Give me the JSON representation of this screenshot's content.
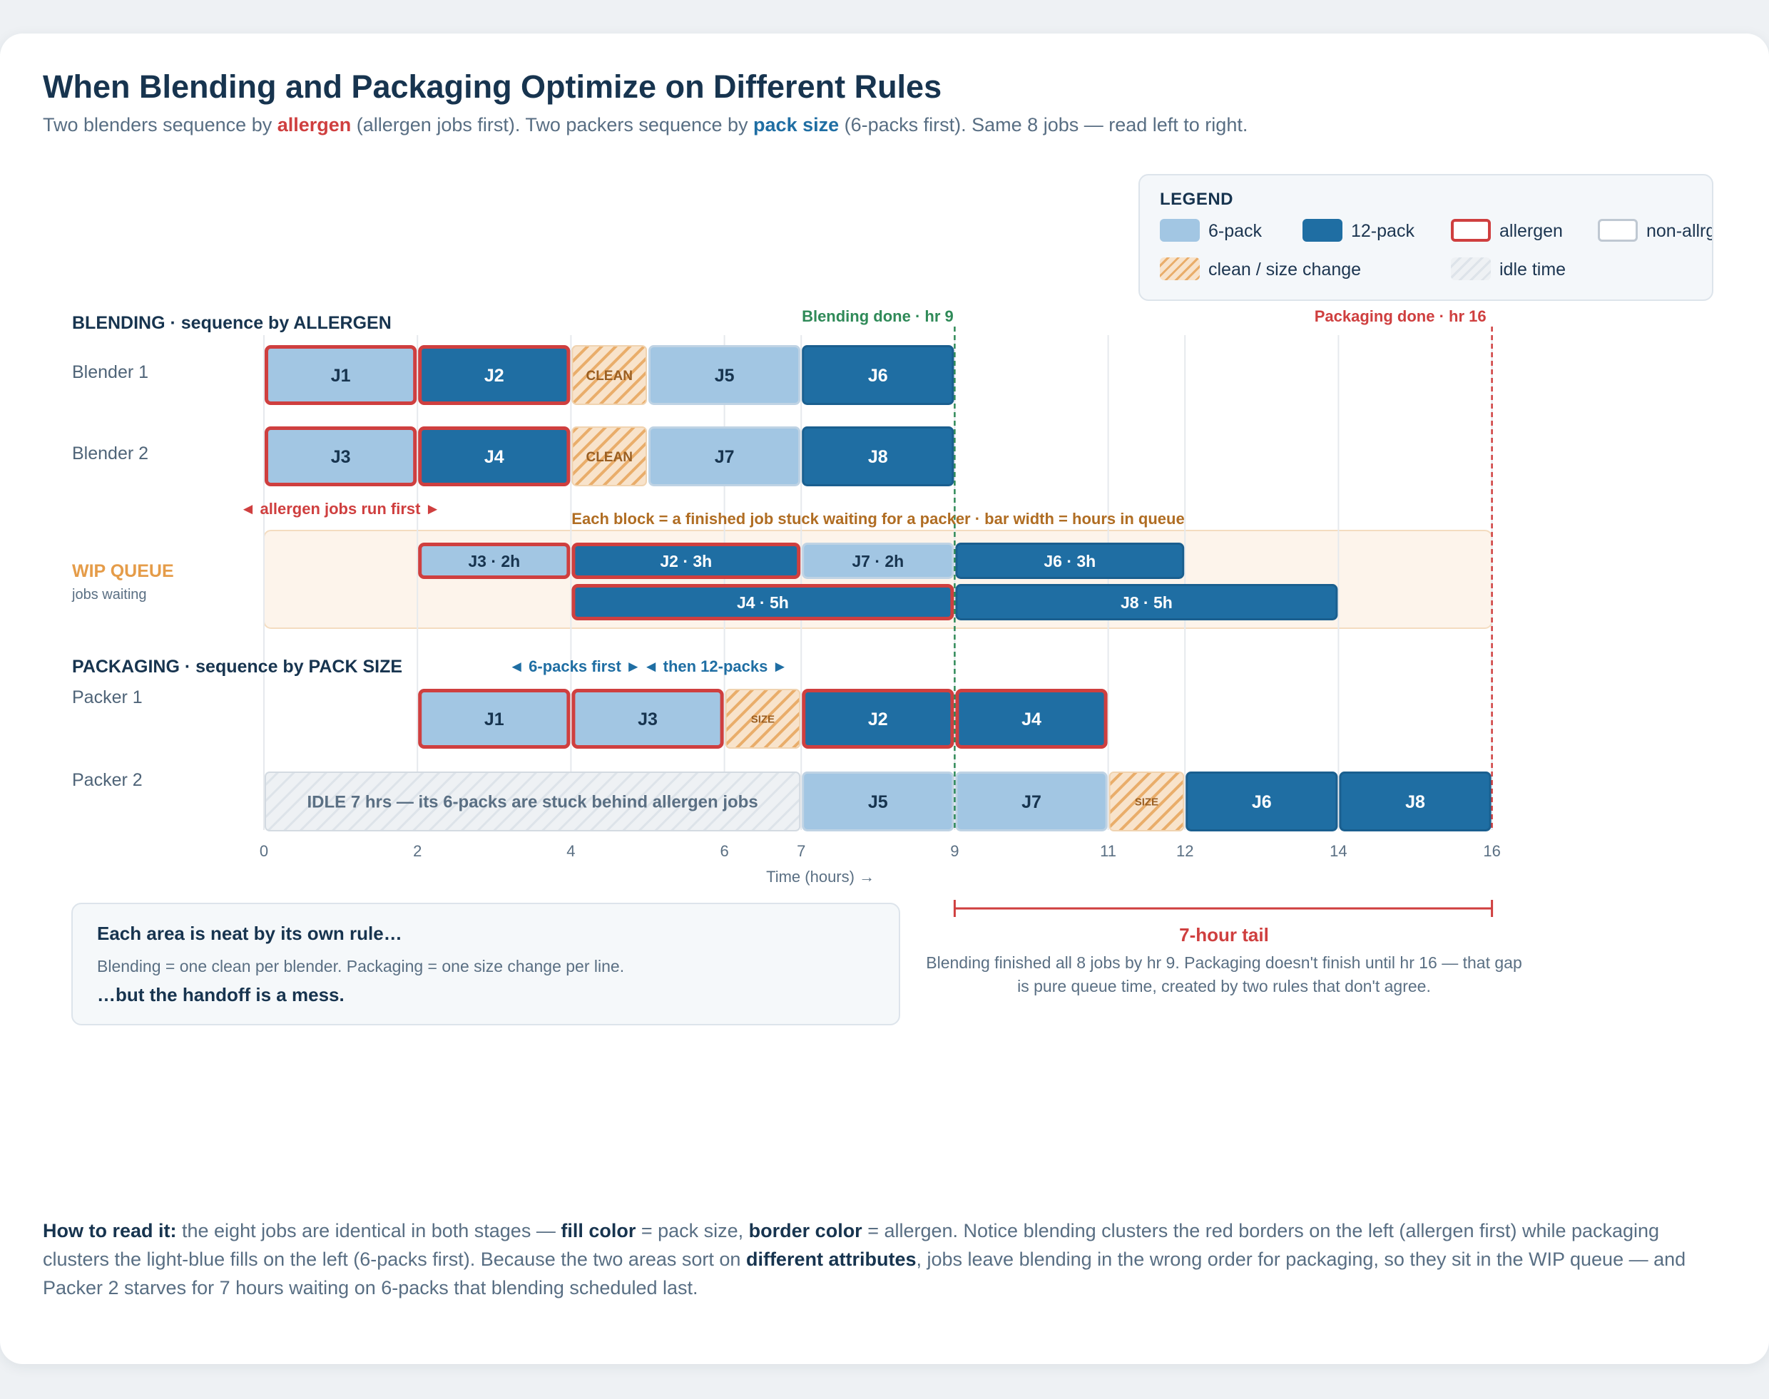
{
  "title": "When Blending and Packaging Optimize on Different Rules",
  "subtitle": {
    "p1": "Two blenders sequence by ",
    "r1": "allergen",
    "p2": " (allergen jobs first). Two packers sequence by ",
    "r2": "pack size",
    "p3": " (6-packs first). Same 8 jobs — read left to right."
  },
  "legend": {
    "title": "LEGEND",
    "items": [
      "6-pack",
      "12-pack",
      "allergen",
      "non-allrg",
      "clean / size change",
      "idle time"
    ]
  },
  "colors": {
    "six_pack": "#a2c6e3",
    "twelve_pack": "#1f6ea3",
    "allergen_border": "#cf3f3f",
    "non_allergen_border": "#bfc8d2",
    "changeover": "#e9ad6a",
    "idle": "#dde3e9",
    "blend_done": "#2f8a58",
    "pack_done": "#cf3f3f",
    "wip": "#e59c49"
  },
  "chart_data": {
    "type": "gantt",
    "xlabel": "Time (hours) →",
    "xlim": [
      0,
      16
    ],
    "xticks": [
      0,
      2,
      4,
      6,
      7,
      9,
      11,
      12,
      14,
      16
    ],
    "markers": [
      {
        "label": "Blending done · hr 9",
        "x": 9
      },
      {
        "label": "Packaging done · hr 16",
        "x": 16
      }
    ],
    "sections": {
      "blending": "BLENDING · sequence by ALLERGEN",
      "wip": "WIP QUEUE",
      "wip_sub": "jobs waiting",
      "packaging": "PACKAGING · sequence by PACK SIZE"
    },
    "annotations": {
      "blend_rule": "◄ allergen jobs run first ►",
      "wip_note": "Each block = a finished job stuck waiting for a packer · bar width = hours in queue",
      "pack_rule1": "◄ 6-packs first ►",
      "pack_rule2": "◄ then 12-packs ►"
    },
    "rows": [
      {
        "name": "Blender 1",
        "tasks": [
          {
            "label": "J1",
            "start": 0,
            "end": 2,
            "pack": 6,
            "allergen": true
          },
          {
            "label": "J2",
            "start": 2,
            "end": 4,
            "pack": 12,
            "allergen": true
          },
          {
            "label": "CLEAN",
            "start": 4,
            "end": 5,
            "kind": "change"
          },
          {
            "label": "J5",
            "start": 5,
            "end": 7,
            "pack": 6,
            "allergen": false
          },
          {
            "label": "J6",
            "start": 7,
            "end": 9,
            "pack": 12,
            "allergen": false
          }
        ]
      },
      {
        "name": "Blender 2",
        "tasks": [
          {
            "label": "J3",
            "start": 0,
            "end": 2,
            "pack": 6,
            "allergen": true
          },
          {
            "label": "J4",
            "start": 2,
            "end": 4,
            "pack": 12,
            "allergen": true
          },
          {
            "label": "CLEAN",
            "start": 4,
            "end": 5,
            "kind": "change"
          },
          {
            "label": "J7",
            "start": 5,
            "end": 7,
            "pack": 6,
            "allergen": false
          },
          {
            "label": "J8",
            "start": 7,
            "end": 9,
            "pack": 12,
            "allergen": false
          }
        ]
      }
    ],
    "wip": [
      {
        "label": "J3 · 2h",
        "start": 2,
        "end": 4,
        "pack": 6,
        "allergen": true,
        "lane": 0
      },
      {
        "label": "J2 · 3h",
        "start": 4,
        "end": 7,
        "pack": 12,
        "allergen": true,
        "lane": 0
      },
      {
        "label": "J7 · 2h",
        "start": 7,
        "end": 9,
        "pack": 6,
        "allergen": false,
        "lane": 0
      },
      {
        "label": "J6 · 3h",
        "start": 9,
        "end": 12,
        "pack": 12,
        "allergen": false,
        "lane": 0
      },
      {
        "label": "J4 · 5h",
        "start": 4,
        "end": 9,
        "pack": 12,
        "allergen": true,
        "lane": 1
      },
      {
        "label": "J8 · 5h",
        "start": 9,
        "end": 14,
        "pack": 12,
        "allergen": false,
        "lane": 1
      }
    ],
    "packers": [
      {
        "name": "Packer 1",
        "tasks": [
          {
            "label": "J1",
            "start": 2,
            "end": 4,
            "pack": 6,
            "allergen": true
          },
          {
            "label": "J3",
            "start": 4,
            "end": 6,
            "pack": 6,
            "allergen": true
          },
          {
            "label": "SIZE",
            "start": 6,
            "end": 7,
            "kind": "change"
          },
          {
            "label": "J2",
            "start": 7,
            "end": 9,
            "pack": 12,
            "allergen": true
          },
          {
            "label": "J4",
            "start": 9,
            "end": 11,
            "pack": 12,
            "allergen": true
          }
        ]
      },
      {
        "name": "Packer 2",
        "tasks": [
          {
            "label": "IDLE 7 hrs — its 6-packs are stuck behind allergen jobs",
            "start": 0,
            "end": 7,
            "kind": "idle"
          },
          {
            "label": "J5",
            "start": 7,
            "end": 9,
            "pack": 6,
            "allergen": false
          },
          {
            "label": "J7",
            "start": 9,
            "end": 11,
            "pack": 6,
            "allergen": false
          },
          {
            "label": "SIZE",
            "start": 11,
            "end": 12,
            "kind": "change"
          },
          {
            "label": "J6",
            "start": 12,
            "end": 14,
            "pack": 12,
            "allergen": false
          },
          {
            "label": "J8",
            "start": 14,
            "end": 16,
            "pack": 12,
            "allergen": false
          }
        ]
      }
    ],
    "tail": {
      "start": 9,
      "end": 16
    }
  },
  "explain": {
    "head": "Each area is neat by its own rule…",
    "body": "Blending = one clean per blender. Packaging = one size change per line.",
    "foot": "…but the handoff is a mess."
  },
  "tail_note": {
    "title": "7-hour tail",
    "text": "Blending finished all 8 jobs by hr 9. Packaging doesn't finish until hr 16 — that gap is pure queue time, created by two rules that don't agree."
  },
  "howto": {
    "lead": "How to read it:",
    "t1": " the eight jobs are identical in both stages — ",
    "b1": "fill color",
    "t2": " = pack size, ",
    "b2": "border color",
    "t3": " = allergen. Notice blending clusters the red borders on the left (allergen first) while packaging clusters the light-blue fills on the left (6-packs first). Because the two areas sort on ",
    "b3": "different attributes",
    "t4": ", jobs leave blending in the wrong order for packaging, so they sit in the WIP queue — and Packer 2 starves for 7 hours waiting on 6-packs that blending scheduled last."
  }
}
